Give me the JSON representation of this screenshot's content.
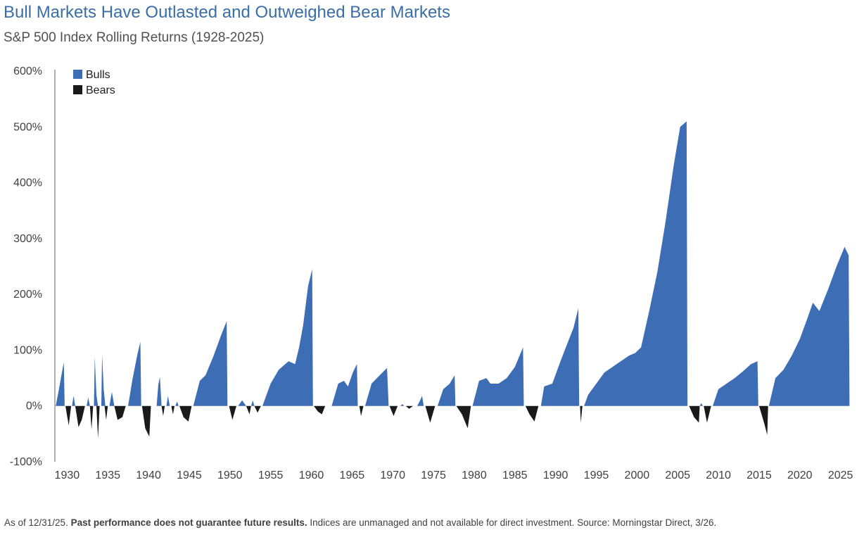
{
  "title": "Bull Markets Have Outlasted and Outweighed Bear Markets",
  "subtitle": "S&P 500 Index Rolling Returns (1928-2025)",
  "footnote": {
    "prefix": "As of 12/31/25. ",
    "bold": "Past performance does not guarantee future results.",
    "suffix": " Indices are unmanaged and not available for direct investment.  Source: Morningstar Direct, 3/26."
  },
  "colors": {
    "bulls": "#3d6db5",
    "bears": "#1a1a1a",
    "axis": "#606060"
  },
  "chart_data": {
    "type": "area",
    "xlim": [
      1928.5,
      2026.5
    ],
    "ylim": [
      -100,
      600
    ],
    "y_ticks": [
      600,
      500,
      400,
      300,
      200,
      100,
      0,
      -100
    ],
    "y_tick_labels": [
      "600%",
      "500%",
      "400%",
      "300%",
      "200%",
      "100%",
      "0%",
      "-100%"
    ],
    "x_ticks": [
      1930,
      1935,
      1940,
      1945,
      1950,
      1955,
      1960,
      1965,
      1970,
      1975,
      1980,
      1985,
      1990,
      1995,
      2000,
      2005,
      2010,
      2015,
      2020,
      2025
    ],
    "x_tick_labels": [
      "1930",
      "1935",
      "1940",
      "1945",
      "1950",
      "1955",
      "1960",
      "1965",
      "1970",
      "1975",
      "1980",
      "1985",
      "1990",
      "1995",
      "2000",
      "2005",
      "2010",
      "2015",
      "2020",
      "2025"
    ],
    "legend": [
      "Bulls",
      "Bears"
    ],
    "legend_position": "top-left",
    "grid": false,
    "series": [
      {
        "name": "Bulls",
        "segments": [
          [
            [
              1928.6,
              0
            ],
            [
              1929.0,
              30
            ],
            [
              1929.3,
              55
            ],
            [
              1929.6,
              78
            ],
            [
              1929.7,
              0
            ]
          ],
          [
            [
              1930.6,
              0
            ],
            [
              1930.8,
              18
            ],
            [
              1931.0,
              0
            ]
          ],
          [
            [
              1932.4,
              0
            ],
            [
              1932.6,
              15
            ],
            [
              1932.8,
              0
            ]
          ],
          [
            [
              1933.3,
              0
            ],
            [
              1933.4,
              88
            ],
            [
              1933.6,
              20
            ],
            [
              1933.8,
              0
            ]
          ],
          [
            [
              1934.2,
              0
            ],
            [
              1934.3,
              92
            ],
            [
              1934.5,
              30
            ],
            [
              1934.7,
              0
            ]
          ],
          [
            [
              1935.2,
              0
            ],
            [
              1935.5,
              25
            ],
            [
              1935.8,
              0
            ]
          ],
          [
            [
              1937.5,
              0
            ],
            [
              1938.0,
              45
            ],
            [
              1938.6,
              90
            ],
            [
              1939.0,
              115
            ],
            [
              1939.1,
              0
            ]
          ],
          [
            [
              1941.0,
              0
            ],
            [
              1941.2,
              38
            ],
            [
              1941.4,
              52
            ],
            [
              1941.6,
              0
            ]
          ],
          [
            [
              1942.2,
              0
            ],
            [
              1942.4,
              18
            ],
            [
              1942.6,
              0
            ]
          ],
          [
            [
              1943.3,
              0
            ],
            [
              1943.5,
              8
            ],
            [
              1943.7,
              0
            ]
          ],
          [
            [
              1945.5,
              0
            ],
            [
              1946.3,
              45
            ],
            [
              1947.0,
              55
            ],
            [
              1948.0,
              90
            ],
            [
              1949.0,
              130
            ],
            [
              1949.6,
              152
            ],
            [
              1949.7,
              0
            ]
          ],
          [
            [
              1951.0,
              0
            ],
            [
              1951.5,
              10
            ],
            [
              1952.0,
              0
            ]
          ],
          [
            [
              1952.6,
              0
            ],
            [
              1952.8,
              10
            ],
            [
              1953.0,
              0
            ]
          ],
          [
            [
              1954.0,
              0
            ],
            [
              1955.0,
              40
            ],
            [
              1956.0,
              65
            ],
            [
              1957.2,
              80
            ],
            [
              1958.0,
              75
            ],
            [
              1958.5,
              105
            ],
            [
              1959.0,
              145
            ],
            [
              1959.6,
              215
            ],
            [
              1960.1,
              245
            ],
            [
              1960.2,
              0
            ]
          ],
          [
            [
              1962.5,
              0
            ],
            [
              1963.3,
              40
            ],
            [
              1964.0,
              45
            ],
            [
              1964.5,
              35
            ],
            [
              1965.1,
              60
            ],
            [
              1965.6,
              75
            ],
            [
              1965.7,
              0
            ]
          ],
          [
            [
              1966.6,
              0
            ],
            [
              1967.4,
              40
            ],
            [
              1968.4,
              55
            ],
            [
              1969.3,
              68
            ],
            [
              1969.5,
              0
            ]
          ],
          [
            [
              1970.9,
              0
            ],
            [
              1971.2,
              3
            ],
            [
              1971.4,
              0
            ]
          ],
          [
            [
              1973.0,
              0
            ],
            [
              1973.3,
              8
            ],
            [
              1973.6,
              18
            ],
            [
              1973.8,
              0
            ]
          ],
          [
            [
              1975.5,
              0
            ],
            [
              1976.2,
              30
            ],
            [
              1977.0,
              40
            ],
            [
              1977.6,
              55
            ],
            [
              1977.7,
              0
            ]
          ],
          [
            [
              1979.8,
              0
            ],
            [
              1980.6,
              45
            ],
            [
              1981.5,
              50
            ],
            [
              1982.0,
              40
            ],
            [
              1983.0,
              40
            ],
            [
              1984.0,
              50
            ],
            [
              1985.0,
              70
            ],
            [
              1986.0,
              105
            ],
            [
              1986.1,
              0
            ]
          ],
          [
            [
              1988.2,
              0
            ],
            [
              1988.6,
              35
            ],
            [
              1989.6,
              40
            ],
            [
              1990.6,
              80
            ],
            [
              1991.4,
              110
            ],
            [
              1992.2,
              140
            ],
            [
              1992.8,
              175
            ],
            [
              1992.9,
              0
            ]
          ],
          [
            [
              1993.5,
              0
            ],
            [
              1994.0,
              20
            ],
            [
              1995.0,
              40
            ],
            [
              1996.0,
              60
            ],
            [
              1997.0,
              70
            ],
            [
              1998.0,
              80
            ],
            [
              1999.0,
              90
            ],
            [
              1999.8,
              95
            ],
            [
              2000.5,
              105
            ],
            [
              2001.5,
              170
            ],
            [
              2002.5,
              240
            ],
            [
              2003.5,
              330
            ],
            [
              2004.5,
              430
            ],
            [
              2005.3,
              500
            ],
            [
              2006.1,
              510
            ],
            [
              2006.2,
              0
            ]
          ],
          [
            [
              2007.7,
              0
            ],
            [
              2007.9,
              5
            ],
            [
              2008.1,
              0
            ]
          ],
          [
            [
              2009.3,
              0
            ],
            [
              2010.0,
              30
            ],
            [
              2011.0,
              40
            ],
            [
              2012.0,
              50
            ],
            [
              2013.0,
              62
            ],
            [
              2014.0,
              75
            ],
            [
              2014.8,
              80
            ],
            [
              2014.9,
              0
            ]
          ],
          [
            [
              2016.2,
              0
            ],
            [
              2017.0,
              50
            ],
            [
              2018.0,
              65
            ],
            [
              2019.0,
              90
            ],
            [
              2020.0,
              120
            ],
            [
              2021.0,
              160
            ],
            [
              2021.6,
              185
            ],
            [
              2022.4,
              170
            ],
            [
              2023.5,
              210
            ],
            [
              2024.5,
              250
            ],
            [
              2025.5,
              285
            ],
            [
              2026.0,
              270
            ],
            [
              2026.1,
              0
            ]
          ]
        ]
      },
      {
        "name": "Bears",
        "segments": [
          [
            [
              1929.8,
              0
            ],
            [
              1930.2,
              -35
            ],
            [
              1930.5,
              0
            ]
          ],
          [
            [
              1931.0,
              0
            ],
            [
              1931.4,
              -38
            ],
            [
              1931.8,
              -25
            ],
            [
              1932.2,
              0
            ]
          ],
          [
            [
              1932.8,
              0
            ],
            [
              1933.0,
              -42
            ],
            [
              1933.2,
              0
            ]
          ],
          [
            [
              1933.6,
              0
            ],
            [
              1933.8,
              -58
            ],
            [
              1934.0,
              0
            ]
          ],
          [
            [
              1934.6,
              0
            ],
            [
              1934.8,
              -25
            ],
            [
              1935.0,
              0
            ]
          ],
          [
            [
              1935.8,
              0
            ],
            [
              1936.2,
              -25
            ],
            [
              1936.8,
              -20
            ],
            [
              1937.2,
              0
            ]
          ],
          [
            [
              1939.2,
              0
            ],
            [
              1939.6,
              -40
            ],
            [
              1940.1,
              -55
            ],
            [
              1940.3,
              0
            ]
          ],
          [
            [
              1941.6,
              0
            ],
            [
              1941.8,
              -18
            ],
            [
              1942.0,
              0
            ]
          ],
          [
            [
              1942.8,
              0
            ],
            [
              1943.0,
              -15
            ],
            [
              1943.2,
              0
            ]
          ],
          [
            [
              1943.8,
              0
            ],
            [
              1944.3,
              -20
            ],
            [
              1944.9,
              -28
            ],
            [
              1945.3,
              0
            ]
          ],
          [
            [
              1949.9,
              0
            ],
            [
              1950.3,
              -25
            ],
            [
              1950.8,
              0
            ]
          ],
          [
            [
              1952.0,
              0
            ],
            [
              1952.4,
              -15
            ],
            [
              1952.6,
              0
            ]
          ],
          [
            [
              1953.0,
              0
            ],
            [
              1953.4,
              -12
            ],
            [
              1953.8,
              0
            ]
          ],
          [
            [
              1960.3,
              0
            ],
            [
              1960.8,
              -10
            ],
            [
              1961.3,
              -15
            ],
            [
              1961.7,
              0
            ]
          ],
          [
            [
              1965.9,
              0
            ],
            [
              1966.1,
              -18
            ],
            [
              1966.4,
              0
            ]
          ],
          [
            [
              1969.6,
              0
            ],
            [
              1970.1,
              -18
            ],
            [
              1970.6,
              0
            ]
          ],
          [
            [
              1971.6,
              0
            ],
            [
              1972.0,
              -5
            ],
            [
              1972.5,
              0
            ]
          ],
          [
            [
              1974.0,
              0
            ],
            [
              1974.6,
              -30
            ],
            [
              1975.2,
              0
            ]
          ],
          [
            [
              1977.8,
              0
            ],
            [
              1978.5,
              -15
            ],
            [
              1979.2,
              -40
            ],
            [
              1979.6,
              0
            ]
          ],
          [
            [
              1986.3,
              0
            ],
            [
              1986.8,
              -15
            ],
            [
              1987.4,
              -28
            ],
            [
              1987.9,
              0
            ]
          ],
          [
            [
              1993.0,
              0
            ],
            [
              1993.1,
              -30
            ],
            [
              1993.3,
              0
            ]
          ],
          [
            [
              2006.4,
              0
            ],
            [
              2007.0,
              -20
            ],
            [
              2007.6,
              -30
            ],
            [
              2007.7,
              0
            ]
          ],
          [
            [
              2008.2,
              0
            ],
            [
              2008.6,
              -30
            ],
            [
              2009.1,
              0
            ]
          ],
          [
            [
              2015.0,
              0
            ],
            [
              2015.6,
              -30
            ],
            [
              2016.0,
              -52
            ],
            [
              2016.1,
              0
            ]
          ]
        ]
      }
    ]
  }
}
